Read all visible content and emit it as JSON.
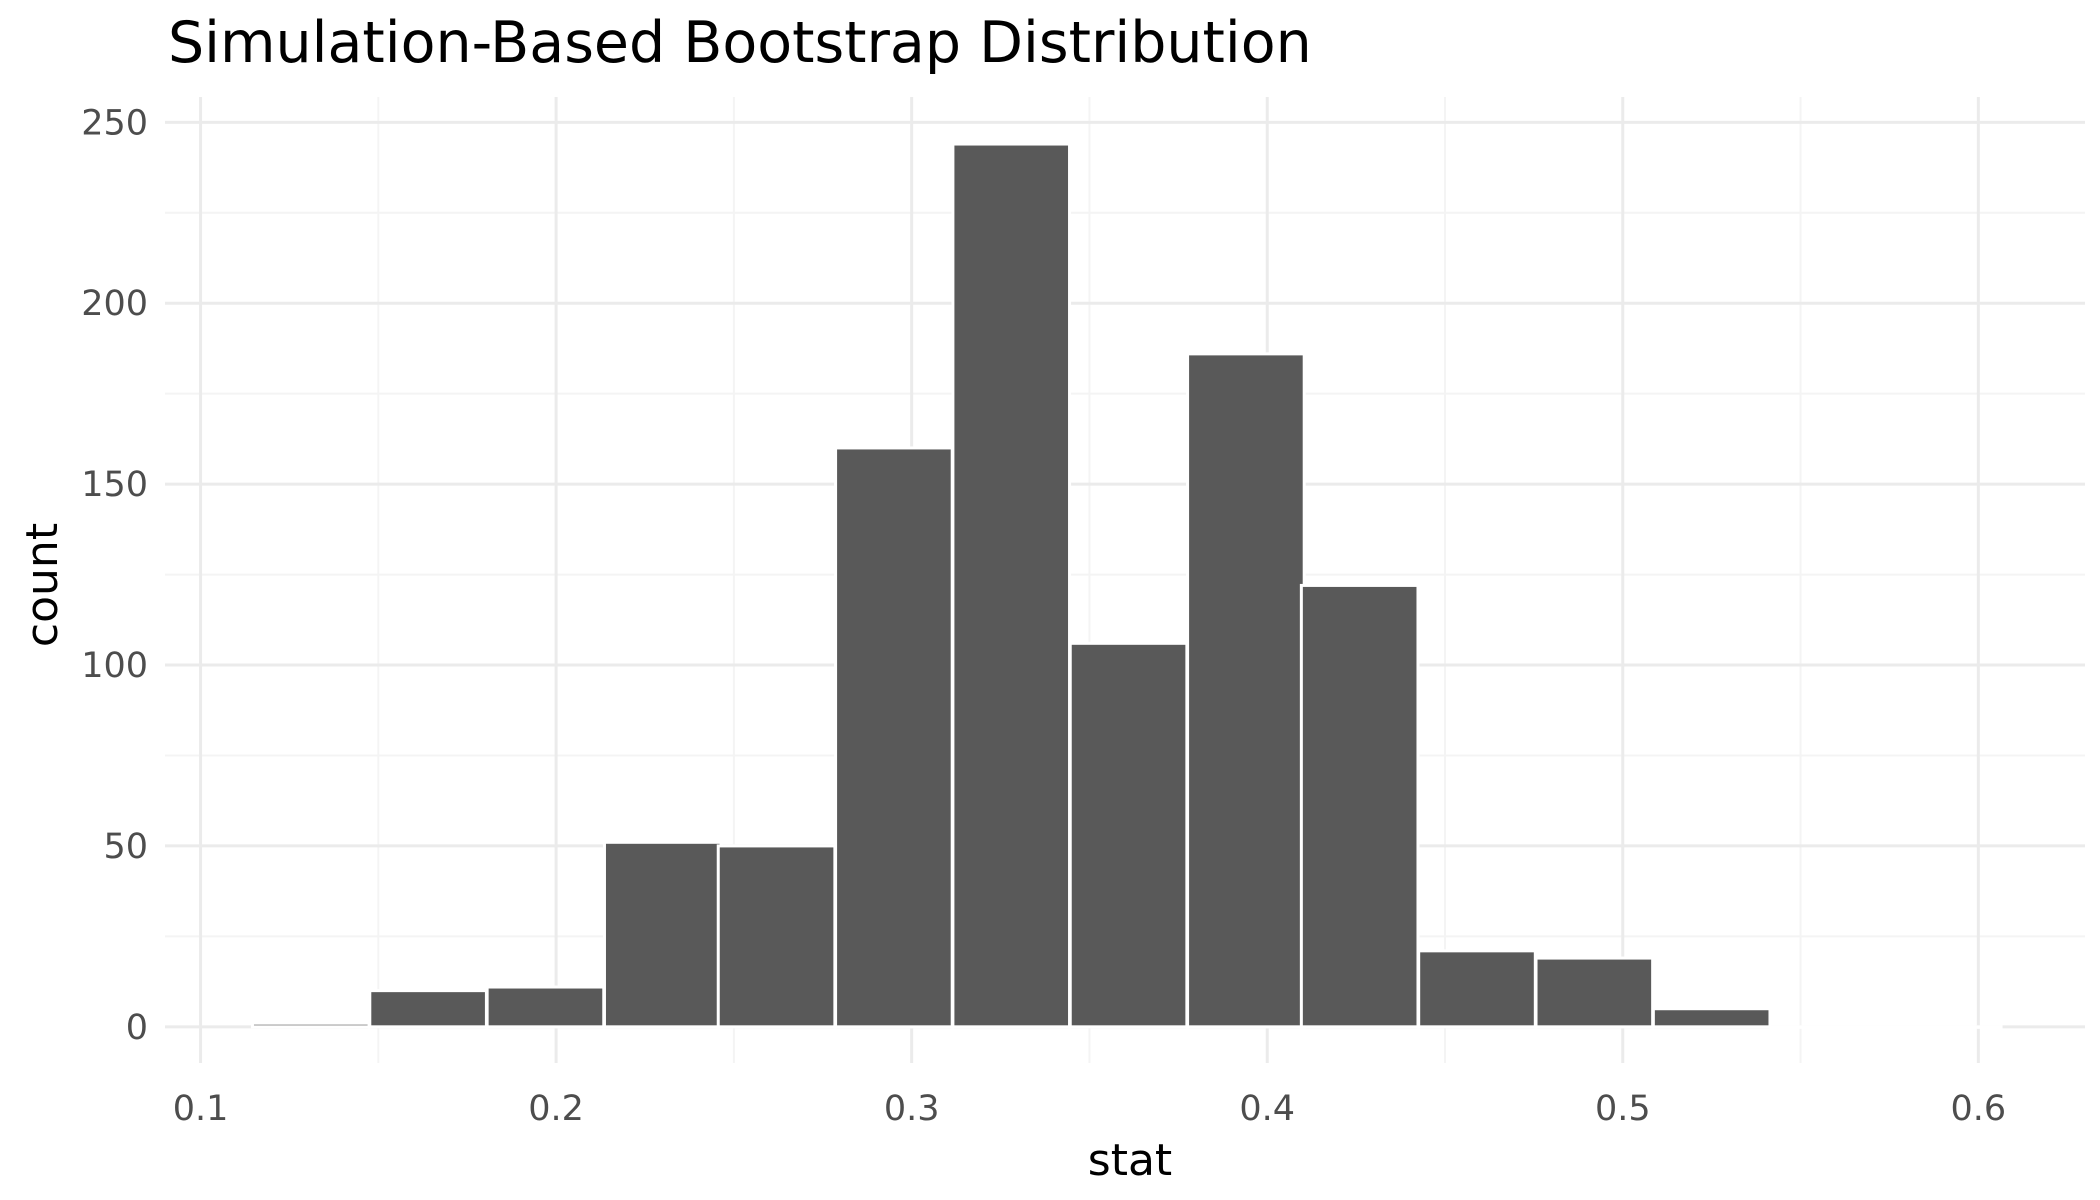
{
  "chart_data": {
    "type": "bar",
    "title": "Simulation-Based Bootstrap Distribution",
    "xlabel": "stat",
    "ylabel": "count",
    "xlim": [
      0.09,
      0.63
    ],
    "ylim": [
      -10,
      257
    ],
    "x_ticks": [
      "0.1",
      "0.2",
      "0.3",
      "0.4",
      "0.5",
      "0.6"
    ],
    "y_ticks": [
      "0",
      "50",
      "100",
      "150",
      "200",
      "250"
    ],
    "grid": true,
    "legend": "none",
    "bin_width": 0.0328,
    "bin_centers": [
      0.131,
      0.164,
      0.197,
      0.23,
      0.262,
      0.295,
      0.328,
      0.361,
      0.394,
      0.426,
      0.459,
      0.492,
      0.525,
      0.558,
      0.59
    ],
    "values": [
      1,
      10,
      11,
      51,
      50,
      160,
      244,
      106,
      186,
      122,
      21,
      19,
      5,
      0,
      0
    ],
    "colors": {
      "bar_fill": "#595959",
      "bar_stroke": "#ffffff",
      "grid_major": "#ebebeb",
      "grid_minor": "#f4f4f4",
      "tick_label": "#4d4d4d",
      "axis_title": "#000000"
    }
  }
}
